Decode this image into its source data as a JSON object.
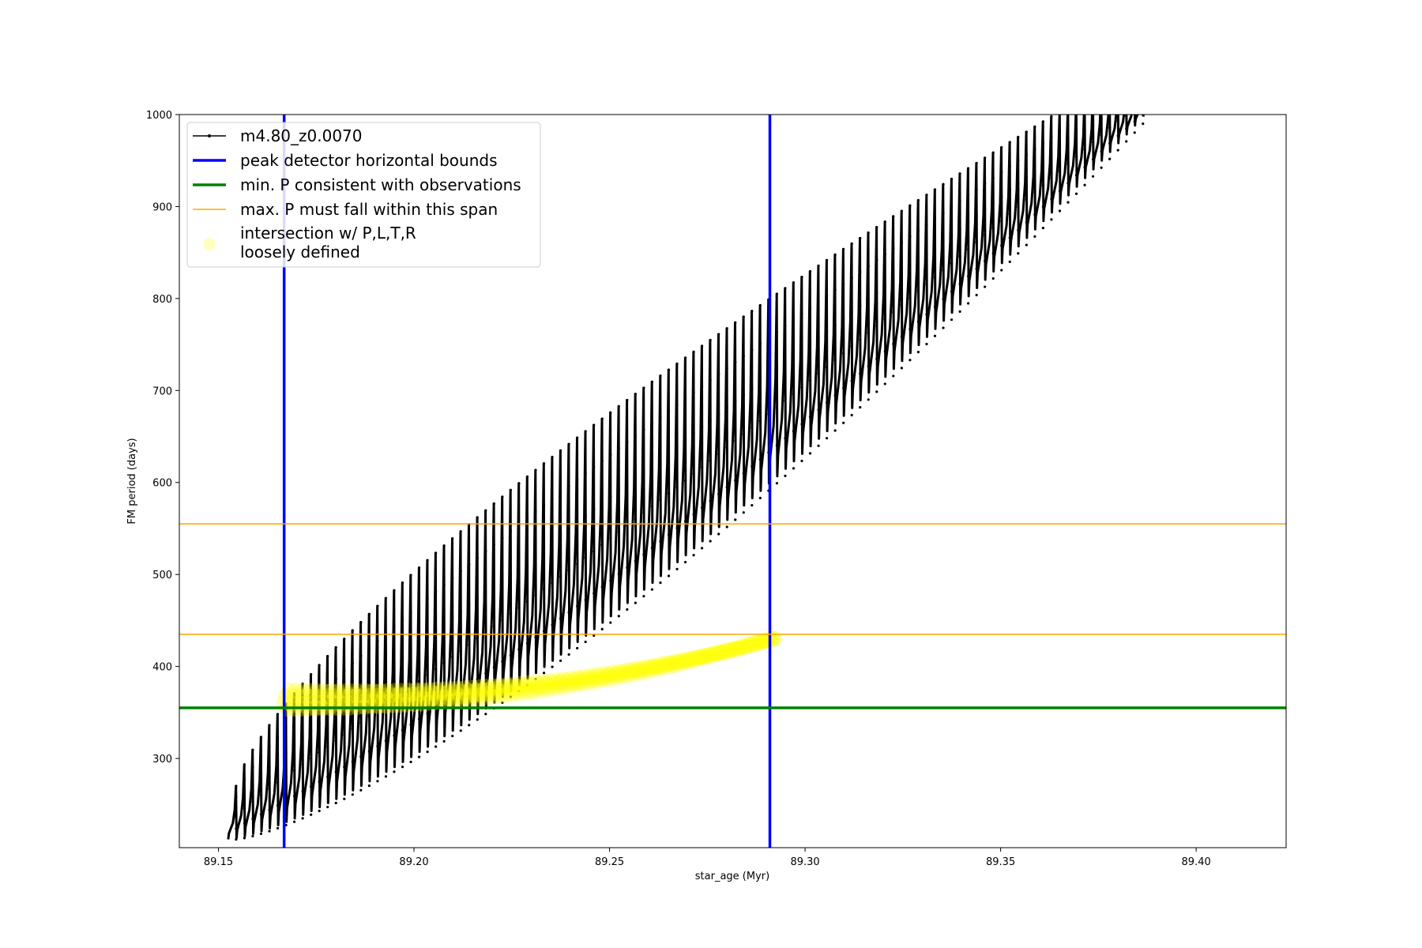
{
  "chart_data": {
    "type": "line",
    "xlabel": "star_age (Myr)",
    "ylabel": "FM period (days)",
    "xlim": [
      89.14,
      89.423
    ],
    "ylim": [
      203,
      1000
    ],
    "xticks": [
      {
        "value": 89.15,
        "label": "89.15"
      },
      {
        "value": 89.2,
        "label": "89.20"
      },
      {
        "value": 89.25,
        "label": "89.25"
      },
      {
        "value": 89.3,
        "label": "89.30"
      },
      {
        "value": 89.35,
        "label": "89.35"
      },
      {
        "value": 89.4,
        "label": "89.40"
      }
    ],
    "yticks": [
      {
        "value": 300,
        "label": "300"
      },
      {
        "value": 400,
        "label": "400"
      },
      {
        "value": 500,
        "label": "500"
      },
      {
        "value": 600,
        "label": "600"
      },
      {
        "value": 700,
        "label": "700"
      },
      {
        "value": 800,
        "label": "800"
      },
      {
        "value": 900,
        "label": "900"
      },
      {
        "value": 1000,
        "label": "1000"
      }
    ],
    "grid": false,
    "legend_position": "top-left",
    "series": [
      {
        "name": "m4.80_z0.0070",
        "color": "#000000",
        "style": "line-with-dots",
        "pulse_cycles": {
          "x_start": 89.1525,
          "x_end": 89.3865,
          "count": 110,
          "trough_start": 212,
          "trough_end": 990,
          "peak_start": 270,
          "peak_end": 1000
        }
      },
      {
        "name": "peak detector horizontal bounds",
        "color": "#0000ff",
        "type": "vline",
        "x": [
          89.1668,
          89.291
        ]
      },
      {
        "name": "min. P consistent with observations",
        "color": "#008000",
        "type": "hline",
        "y": [
          355
        ]
      },
      {
        "name": "max. P must fall within this span",
        "color": "#ffa500",
        "type": "hline",
        "y": [
          435,
          555
        ]
      },
      {
        "name": "intersection w/ P,L,T,R\nloosely defined",
        "color": "#ffff00",
        "type": "scatter",
        "x_start": 89.1668,
        "x_end": 89.291,
        "y_start": 360,
        "y_end": 430
      }
    ],
    "legend": [
      {
        "label": "m4.80_z0.0070",
        "kind": "line-dot",
        "color": "#000000"
      },
      {
        "label": "peak detector horizontal bounds",
        "kind": "line",
        "color": "#0000ff"
      },
      {
        "label": "min. P consistent with observations",
        "kind": "line",
        "color": "#008000"
      },
      {
        "label": "max. P must fall within this span",
        "kind": "thin-line",
        "color": "#ffa500"
      },
      {
        "label_line1": "intersection w/ P,L,T,R",
        "label_line2": "loosely defined",
        "kind": "dot",
        "color": "#ffff00"
      }
    ]
  }
}
